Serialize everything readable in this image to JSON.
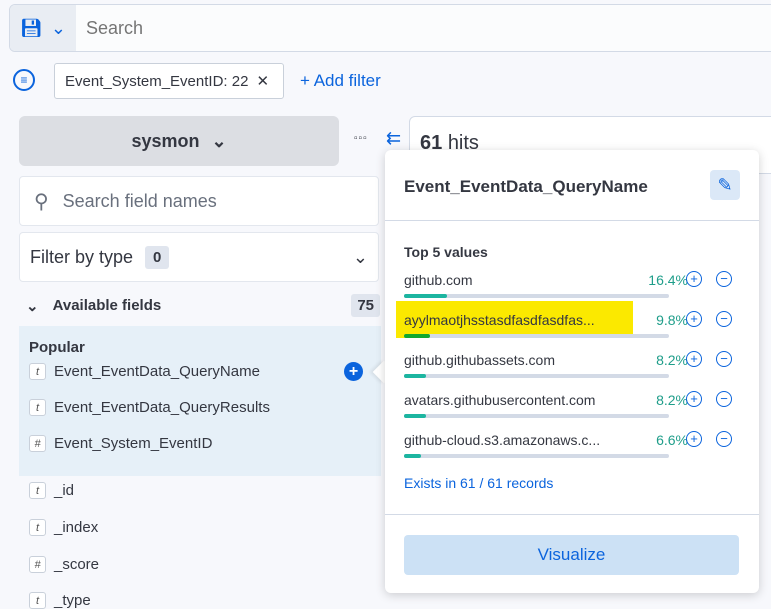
{
  "search": {
    "placeholder": "Search"
  },
  "filters": {
    "pill": "Event_System_EventID: 22",
    "add": "+ Add filter"
  },
  "index": {
    "name": "sysmon"
  },
  "hits": {
    "count": "61",
    "label": "hits"
  },
  "sidebar": {
    "search_placeholder": "Search field names",
    "filter_by_type": "Filter by type",
    "filter_count": "0",
    "available": "Available fields",
    "available_count": "75",
    "popular": "Popular",
    "popular_fields": [
      {
        "type": "t",
        "name": "Event_EventData_QueryName"
      },
      {
        "type": "t",
        "name": "Event_EventData_QueryResults"
      },
      {
        "type": "#",
        "name": "Event_System_EventID"
      }
    ],
    "fields": [
      {
        "type": "t",
        "name": "_id"
      },
      {
        "type": "t",
        "name": "_index"
      },
      {
        "type": "#",
        "name": "_score"
      },
      {
        "type": "t",
        "name": "_type"
      }
    ]
  },
  "popover": {
    "title": "Event_EventData_QueryName",
    "top_label": "Top 5 values",
    "values": [
      {
        "label": "github.com",
        "pct": "16.4%",
        "value": 16.4
      },
      {
        "label": "ayylmaotjhsstasdfasdfasdfas...",
        "pct": "9.8%",
        "value": 9.8,
        "highlighted": true
      },
      {
        "label": "github.githubassets.com",
        "pct": "8.2%",
        "value": 8.2
      },
      {
        "label": "avatars.githubusercontent.com",
        "pct": "8.2%",
        "value": 8.2
      },
      {
        "label": "github-cloud.s3.amazonaws.c...",
        "pct": "6.6%",
        "value": 6.6
      }
    ],
    "exists": "Exists in 61 / 61 records",
    "visualize": "Visualize"
  },
  "colors": {
    "accent": "#0b64dd",
    "bar": "#1cb5a0",
    "highlight": "#fbe900"
  }
}
